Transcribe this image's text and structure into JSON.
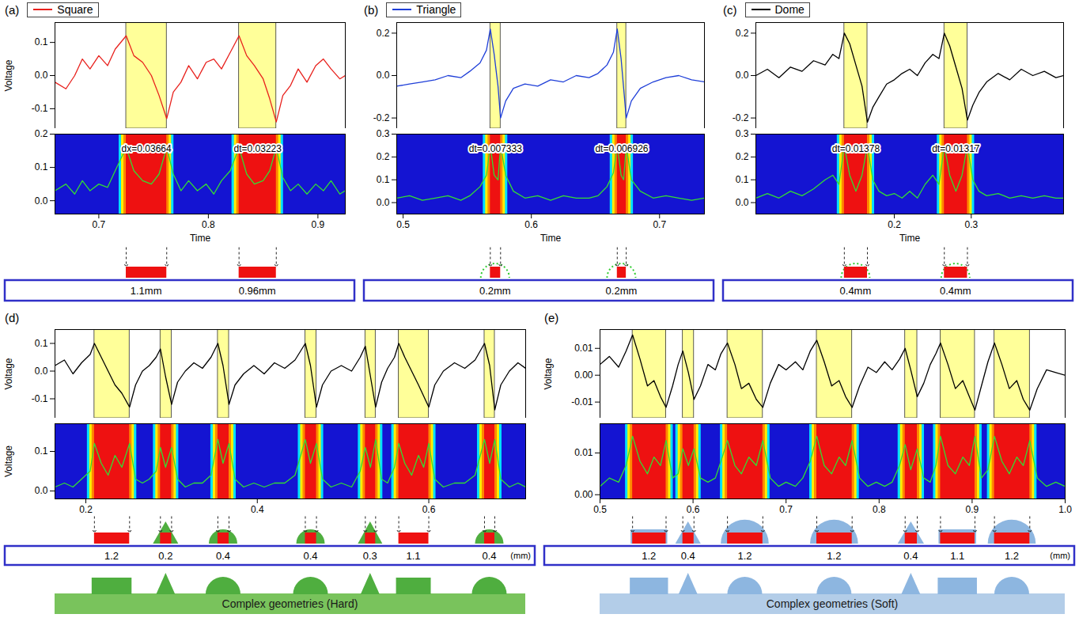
{
  "chart_data": [
    {
      "type": "line",
      "panel": "(a)",
      "legend": "top-left",
      "ylabel": "Voltage",
      "xlabel": "Time",
      "x": [
        0.66,
        0.67,
        0.678,
        0.685,
        0.692,
        0.7,
        0.708,
        0.715,
        0.725,
        0.732,
        0.74,
        0.748,
        0.755,
        0.762,
        0.768,
        0.775,
        0.782,
        0.79,
        0.798,
        0.805,
        0.812,
        0.82,
        0.828,
        0.835,
        0.842,
        0.85,
        0.856,
        0.862,
        0.868,
        0.875,
        0.882,
        0.89,
        0.898,
        0.905,
        0.912,
        0.92,
        0.925
      ],
      "series": [
        {
          "name": "Square",
          "color": "#e8201c",
          "values": [
            -0.02,
            -0.04,
            0.0,
            0.05,
            0.02,
            0.06,
            0.03,
            0.08,
            0.12,
            0.06,
            0.04,
            0.0,
            -0.06,
            -0.13,
            -0.05,
            -0.02,
            0.03,
            -0.01,
            0.04,
            0.05,
            0.02,
            0.07,
            0.12,
            0.06,
            0.03,
            -0.01,
            -0.07,
            -0.14,
            -0.06,
            -0.03,
            0.02,
            -0.02,
            0.03,
            0.05,
            0.02,
            -0.01,
            0.0
          ]
        }
      ],
      "xlim": [
        0.66,
        0.925
      ],
      "xticks": [
        0.7,
        0.8,
        0.9
      ],
      "ylim": [
        -0.16,
        0.16
      ],
      "yticks": [
        -0.1,
        {
          "value": 0,
          "label": "0.0"
        },
        0.1
      ],
      "envelope": {
        "color": "#33dd33",
        "values": [
          0.03,
          0.05,
          0.02,
          0.06,
          0.03,
          0.05,
          0.04,
          0.09,
          0.16,
          0.09,
          0.06,
          0.05,
          0.08,
          0.16,
          0.08,
          0.03,
          0.06,
          0.03,
          0.05,
          0.02,
          0.06,
          0.09,
          0.16,
          0.08,
          0.05,
          0.06,
          0.09,
          0.16,
          0.07,
          0.03,
          0.05,
          0.02,
          0.05,
          0.03,
          0.06,
          0.02,
          0.03
        ],
        "ylim": [
          -0.04,
          0.2
        ],
        "yticks": [
          {
            "value": 0,
            "label": "0.0"
          },
          0.1,
          0.2
        ]
      },
      "bands": [
        [
          0.725,
          0.762
        ],
        [
          0.828,
          0.862
        ]
      ],
      "annotations": [
        "dx=0.03664",
        "dt=0.03223"
      ],
      "shapes": [
        "Square",
        "Square"
      ],
      "widths": [
        "1.1mm",
        "0.96mm"
      ]
    },
    {
      "type": "line",
      "panel": "(b)",
      "legend": "top-left",
      "xlabel": "Time",
      "x": [
        0.495,
        0.505,
        0.515,
        0.525,
        0.535,
        0.545,
        0.552,
        0.56,
        0.565,
        0.568,
        0.571,
        0.574,
        0.576,
        0.58,
        0.586,
        0.595,
        0.605,
        0.615,
        0.625,
        0.635,
        0.645,
        0.652,
        0.659,
        0.664,
        0.667,
        0.67,
        0.672,
        0.674,
        0.678,
        0.685,
        0.695,
        0.705,
        0.715,
        0.725,
        0.735
      ],
      "series": [
        {
          "name": "Triangle",
          "color": "#1f3fd8",
          "values": [
            -0.05,
            -0.04,
            -0.03,
            -0.02,
            0.0,
            -0.01,
            0.02,
            0.06,
            0.12,
            0.22,
            0.1,
            -0.05,
            -0.2,
            -0.12,
            -0.06,
            -0.04,
            -0.05,
            -0.02,
            -0.03,
            0.0,
            -0.01,
            0.01,
            0.05,
            0.11,
            0.22,
            0.08,
            -0.06,
            -0.2,
            -0.12,
            -0.06,
            -0.03,
            -0.01,
            0.0,
            -0.02,
            -0.03
          ]
        }
      ],
      "xlim": [
        0.495,
        0.735
      ],
      "xticks": [
        0.5,
        0.6,
        0.7
      ],
      "ylim": [
        -0.25,
        0.25
      ],
      "yticks": [
        -0.2,
        {
          "value": 0,
          "label": "0.0"
        },
        0.2
      ],
      "envelope": {
        "color": "#33dd33",
        "values": [
          0.02,
          0.03,
          0.01,
          0.02,
          0.03,
          0.01,
          0.03,
          0.07,
          0.12,
          0.25,
          0.12,
          0.1,
          0.25,
          0.12,
          0.05,
          0.02,
          0.03,
          0.01,
          0.03,
          0.02,
          0.02,
          0.03,
          0.07,
          0.13,
          0.25,
          0.12,
          0.1,
          0.25,
          0.1,
          0.05,
          0.02,
          0.03,
          0.02,
          0.01,
          0.02
        ],
        "ylim": [
          -0.05,
          0.3
        ],
        "yticks": [
          {
            "value": 0,
            "label": "0.0"
          },
          0.1,
          0.2,
          0.3
        ]
      },
      "bands": [
        [
          0.568,
          0.576
        ],
        [
          0.667,
          0.674
        ]
      ],
      "annotations": [
        "dt=0.007333",
        "dt=0.006926"
      ],
      "shapes": [
        "Triangle",
        "Triangle"
      ],
      "widths": [
        "0.2mm",
        "0.2mm"
      ]
    },
    {
      "type": "line",
      "panel": "(c)",
      "legend": "top-left",
      "xlabel": "Time",
      "x": [
        0.02,
        0.035,
        0.05,
        0.065,
        0.08,
        0.095,
        0.11,
        0.12,
        0.128,
        0.135,
        0.142,
        0.15,
        0.158,
        0.165,
        0.172,
        0.18,
        0.19,
        0.2,
        0.21,
        0.22,
        0.23,
        0.24,
        0.25,
        0.258,
        0.265,
        0.272,
        0.28,
        0.288,
        0.295,
        0.302,
        0.31,
        0.32,
        0.335,
        0.35,
        0.365,
        0.38,
        0.395,
        0.41,
        0.42
      ],
      "series": [
        {
          "name": "Dome",
          "color": "#000000",
          "values": [
            0.0,
            0.03,
            -0.01,
            0.04,
            0.02,
            0.07,
            0.05,
            0.1,
            0.08,
            0.2,
            0.15,
            0.05,
            -0.05,
            -0.22,
            -0.15,
            -0.1,
            -0.04,
            -0.02,
            0.01,
            0.03,
            0.0,
            0.06,
            0.1,
            0.08,
            0.2,
            0.14,
            0.04,
            -0.06,
            -0.21,
            -0.14,
            -0.08,
            -0.03,
            0.01,
            -0.02,
            0.03,
            0.0,
            0.02,
            -0.01,
            0.0
          ]
        }
      ],
      "xlim": [
        0.02,
        0.42
      ],
      "xticks": [
        0.2,
        0.3
      ],
      "ylim": [
        -0.25,
        0.25
      ],
      "yticks": [
        -0.2,
        {
          "value": 0,
          "label": "0.0"
        },
        0.2
      ],
      "envelope": {
        "color": "#33dd33",
        "values": [
          0.02,
          0.04,
          0.02,
          0.05,
          0.03,
          0.06,
          0.1,
          0.12,
          0.08,
          0.25,
          0.12,
          0.05,
          0.12,
          0.25,
          0.1,
          0.05,
          0.03,
          0.04,
          0.02,
          0.05,
          0.02,
          0.08,
          0.12,
          0.08,
          0.25,
          0.12,
          0.05,
          0.12,
          0.25,
          0.1,
          0.05,
          0.03,
          0.04,
          0.02,
          0.03,
          0.02,
          0.03,
          0.02,
          0.02
        ],
        "ylim": [
          -0.05,
          0.3
        ],
        "yticks": [
          {
            "value": 0,
            "label": "0.0"
          },
          0.1,
          0.2,
          0.3
        ]
      },
      "bands": [
        [
          0.135,
          0.165
        ],
        [
          0.265,
          0.295
        ]
      ],
      "annotations": [
        "dt=0.01378",
        "dt=0.01317"
      ],
      "shapes": [
        "Dome",
        "Dome"
      ],
      "widths": [
        "0.4mm",
        "0.4mm"
      ]
    },
    {
      "type": "line",
      "panel": "(d)",
      "ylabel": "Voltage",
      "x": [
        0.164,
        0.175,
        0.185,
        0.195,
        0.205,
        0.21,
        0.218,
        0.226,
        0.234,
        0.242,
        0.251,
        0.258,
        0.266,
        0.274,
        0.282,
        0.287,
        0.293,
        0.3,
        0.307,
        0.316,
        0.326,
        0.336,
        0.346,
        0.354,
        0.36,
        0.367,
        0.374,
        0.384,
        0.396,
        0.408,
        0.42,
        0.432,
        0.444,
        0.456,
        0.462,
        0.469,
        0.476,
        0.486,
        0.498,
        0.51,
        0.52,
        0.526,
        0.532,
        0.538,
        0.545,
        0.552,
        0.56,
        0.565,
        0.572,
        0.58,
        0.588,
        0.594,
        0.6,
        0.607,
        0.617,
        0.63,
        0.642,
        0.654,
        0.665,
        0.671,
        0.677,
        0.684,
        0.694,
        0.704,
        0.713
      ],
      "series": [
        {
          "color": "#000000",
          "values": [
            0.02,
            0.04,
            -0.01,
            0.03,
            0.06,
            0.1,
            0.05,
            0.0,
            -0.05,
            -0.08,
            -0.13,
            -0.05,
            0.0,
            0.02,
            0.05,
            0.08,
            -0.02,
            -0.12,
            -0.04,
            0.0,
            0.03,
            0.01,
            0.05,
            0.1,
            0.02,
            -0.12,
            -0.05,
            -0.01,
            0.02,
            -0.01,
            0.03,
            0.01,
            0.04,
            0.1,
            0.02,
            -0.13,
            -0.05,
            0.0,
            0.02,
            0.0,
            0.05,
            0.09,
            -0.02,
            -0.13,
            -0.04,
            0.01,
            0.05,
            0.1,
            0.05,
            0.0,
            -0.05,
            -0.09,
            -0.13,
            -0.05,
            0.0,
            0.03,
            0.01,
            0.04,
            0.1,
            0.02,
            -0.14,
            -0.05,
            0.0,
            0.03,
            0.01
          ]
        }
      ],
      "xlim": [
        0.164,
        0.713
      ],
      "xticks": [
        0.2,
        0.4,
        0.6
      ],
      "ylim": [
        -0.17,
        0.15
      ],
      "yticks": [
        -0.1,
        {
          "value": 0,
          "label": "0.0"
        },
        0.1
      ],
      "envelope": {
        "color": "#33dd33",
        "ylabel": "Voltage",
        "values": [
          0.01,
          0.02,
          0.01,
          0.03,
          0.05,
          0.12,
          0.07,
          0.04,
          0.09,
          0.06,
          0.12,
          0.03,
          0.02,
          0.03,
          0.05,
          0.11,
          0.06,
          0.11,
          0.03,
          0.01,
          0.02,
          0.02,
          0.04,
          0.13,
          0.07,
          0.12,
          0.03,
          0.01,
          0.02,
          0.01,
          0.02,
          0.02,
          0.04,
          0.13,
          0.07,
          0.12,
          0.03,
          0.01,
          0.02,
          0.01,
          0.05,
          0.11,
          0.06,
          0.13,
          0.03,
          0.02,
          0.06,
          0.12,
          0.07,
          0.04,
          0.09,
          0.06,
          0.12,
          0.03,
          0.01,
          0.02,
          0.02,
          0.04,
          0.13,
          0.07,
          0.13,
          0.03,
          0.01,
          0.02,
          0.01
        ],
        "ylim": [
          -0.02,
          0.17
        ],
        "yticks": [
          {
            "value": 0,
            "label": "0.0"
          },
          0.1
        ]
      },
      "bands": [
        [
          0.21,
          0.251
        ],
        [
          0.287,
          0.3
        ],
        [
          0.354,
          0.367
        ],
        [
          0.456,
          0.469
        ],
        [
          0.526,
          0.538
        ],
        [
          0.565,
          0.6
        ],
        [
          0.665,
          0.677
        ]
      ],
      "shapes": [
        "Square",
        "Triangle",
        "Dome",
        "Dome",
        "Triangle",
        "Square",
        "Dome"
      ],
      "widths": [
        1.2,
        0.2,
        0.4,
        0.4,
        0.3,
        1.1,
        0.4
      ],
      "width_unit": "(mm)",
      "photo_caption": "Complex geometries (Hard)"
    },
    {
      "type": "line",
      "panel": "(e)",
      "ylabel": "Voltage",
      "x": [
        0.5,
        0.51,
        0.52,
        0.528,
        0.535,
        0.543,
        0.551,
        0.558,
        0.565,
        0.571,
        0.578,
        0.584,
        0.589,
        0.595,
        0.601,
        0.608,
        0.616,
        0.624,
        0.63,
        0.637,
        0.645,
        0.652,
        0.66,
        0.668,
        0.675,
        0.683,
        0.692,
        0.7,
        0.71,
        0.718,
        0.726,
        0.733,
        0.741,
        0.749,
        0.757,
        0.764,
        0.771,
        0.779,
        0.788,
        0.797,
        0.806,
        0.814,
        0.822,
        0.828,
        0.834,
        0.841,
        0.848,
        0.855,
        0.861,
        0.866,
        0.874,
        0.882,
        0.89,
        0.897,
        0.903,
        0.91,
        0.917,
        0.924,
        0.932,
        0.94,
        0.948,
        0.955,
        0.962,
        0.97,
        0.98,
        0.99,
        1.0
      ],
      "series": [
        {
          "color": "#000000",
          "values": [
            0.004,
            0.007,
            0.003,
            0.009,
            0.015,
            0.006,
            -0.004,
            -0.002,
            -0.008,
            -0.012,
            -0.004,
            0.004,
            0.009,
            0.001,
            -0.009,
            -0.004,
            0.004,
            0.002,
            0.008,
            0.012,
            0.004,
            -0.005,
            -0.003,
            -0.009,
            -0.012,
            -0.003,
            0.004,
            0.002,
            0.005,
            0.002,
            0.009,
            0.013,
            0.005,
            -0.004,
            -0.002,
            -0.008,
            -0.012,
            -0.004,
            0.003,
            0.001,
            0.005,
            0.002,
            0.006,
            0.01,
            0.002,
            -0.008,
            -0.003,
            0.004,
            0.008,
            0.012,
            0.004,
            -0.005,
            -0.002,
            -0.008,
            -0.013,
            -0.004,
            0.005,
            0.012,
            0.004,
            -0.005,
            -0.002,
            -0.009,
            -0.013,
            -0.005,
            0.002,
            0.001,
            0.0
          ]
        }
      ],
      "xlim": [
        0.5,
        1.0
      ],
      "xticks": [
        0.5,
        0.6,
        0.7,
        0.8,
        0.9,
        {
          "value": 1,
          "label": "1.0"
        }
      ],
      "ylim": [
        -0.016,
        0.017
      ],
      "yticks": [
        -0.01,
        {
          "value": 0,
          "label": "0.00"
        },
        0.01
      ],
      "envelope": {
        "color": "#33dd33",
        "values": [
          0.002,
          0.004,
          0.003,
          0.007,
          0.014,
          0.008,
          0.005,
          0.009,
          0.007,
          0.013,
          0.004,
          0.005,
          0.011,
          0.007,
          0.011,
          0.004,
          0.003,
          0.004,
          0.008,
          0.013,
          0.007,
          0.005,
          0.009,
          0.007,
          0.013,
          0.004,
          0.002,
          0.003,
          0.002,
          0.004,
          0.008,
          0.014,
          0.007,
          0.005,
          0.009,
          0.007,
          0.013,
          0.004,
          0.002,
          0.003,
          0.002,
          0.003,
          0.007,
          0.012,
          0.006,
          0.011,
          0.004,
          0.003,
          0.007,
          0.014,
          0.007,
          0.005,
          0.009,
          0.007,
          0.014,
          0.004,
          0.006,
          0.014,
          0.008,
          0.005,
          0.009,
          0.007,
          0.013,
          0.004,
          0.002,
          0.003,
          0.002
        ],
        "ylim": [
          -0.001,
          0.017
        ],
        "yticks": [
          {
            "value": 0,
            "label": "0.00"
          },
          0.01
        ]
      },
      "bands": [
        [
          0.535,
          0.571
        ],
        [
          0.589,
          0.601
        ],
        [
          0.637,
          0.675
        ],
        [
          0.733,
          0.771
        ],
        [
          0.828,
          0.841
        ],
        [
          0.866,
          0.903
        ],
        [
          0.924,
          0.962
        ]
      ],
      "shapes": [
        "Square",
        "Triangle",
        "Dome",
        "Dome",
        "Triangle",
        "Square",
        "Dome"
      ],
      "widths": [
        1.2,
        0.4,
        1.2,
        1.2,
        0.4,
        1.1,
        1.2
      ],
      "width_unit": "(mm)",
      "photo_caption": "Complex geometries (Soft)"
    }
  ]
}
